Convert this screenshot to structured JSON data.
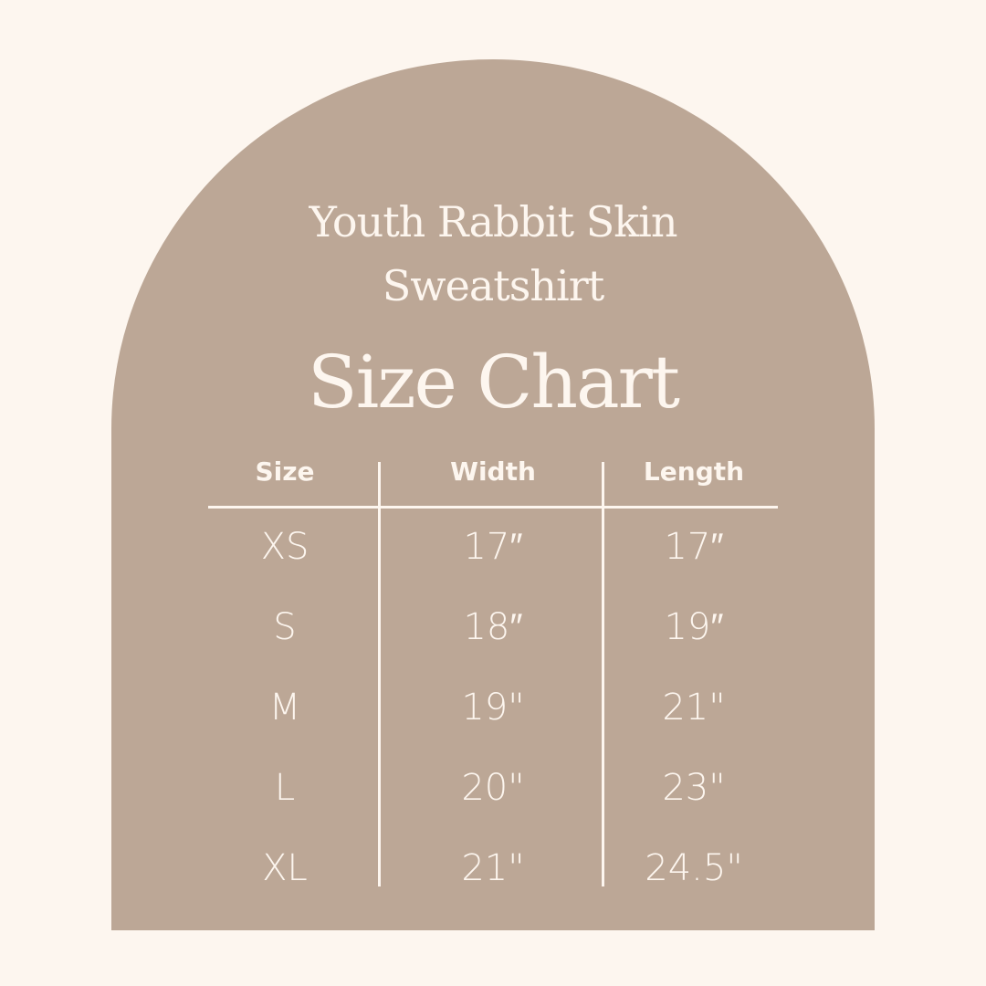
{
  "title": {
    "line1": "Youth Rabbit Skin",
    "line2": "Sweatshirt",
    "line3": "Size Chart"
  },
  "colors": {
    "background": "#fdf6ef",
    "arch": "#bca796",
    "text": "#fdf6ef"
  },
  "table": {
    "headers": [
      "Size",
      "Width",
      "Length"
    ],
    "rows": [
      [
        "XS",
        "17″",
        "17″"
      ],
      [
        "S",
        "18″",
        "19″"
      ],
      [
        "M",
        "19\"",
        "21\""
      ],
      [
        "L",
        "20\"",
        "23\""
      ],
      [
        "XL",
        "21\"",
        "24.5\""
      ]
    ]
  }
}
